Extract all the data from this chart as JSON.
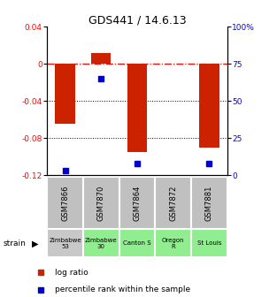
{
  "title": "GDS441 / 14.6.13",
  "samples": [
    "GSM7866",
    "GSM7870",
    "GSM7864",
    "GSM7872",
    "GSM7881"
  ],
  "log_ratios": [
    -0.065,
    0.012,
    -0.095,
    0.0,
    -0.09
  ],
  "percentile_ranks": [
    3.0,
    65.0,
    8.0,
    null,
    8.0
  ],
  "strains": [
    "Zimbabwe\n53",
    "Zimbabwe\n30",
    "Canton S",
    "Oregon\nR",
    "St Louis"
  ],
  "strain_colors": [
    "#c8c8c8",
    "#90ee90",
    "#90ee90",
    "#90ee90",
    "#90ee90"
  ],
  "ylim_left": [
    -0.12,
    0.04
  ],
  "ylim_right": [
    0,
    100
  ],
  "yticks_left": [
    0.04,
    0.0,
    -0.04,
    -0.08,
    -0.12
  ],
  "yticks_right": [
    100,
    75,
    50,
    25,
    0
  ],
  "bar_color": "#cc2200",
  "dot_color": "#0000cc",
  "bar_width": 0.55,
  "dot_size": 25,
  "sample_box_color": "#c0c0c0",
  "legend_red": "#cc2200",
  "legend_blue": "#0000cc"
}
